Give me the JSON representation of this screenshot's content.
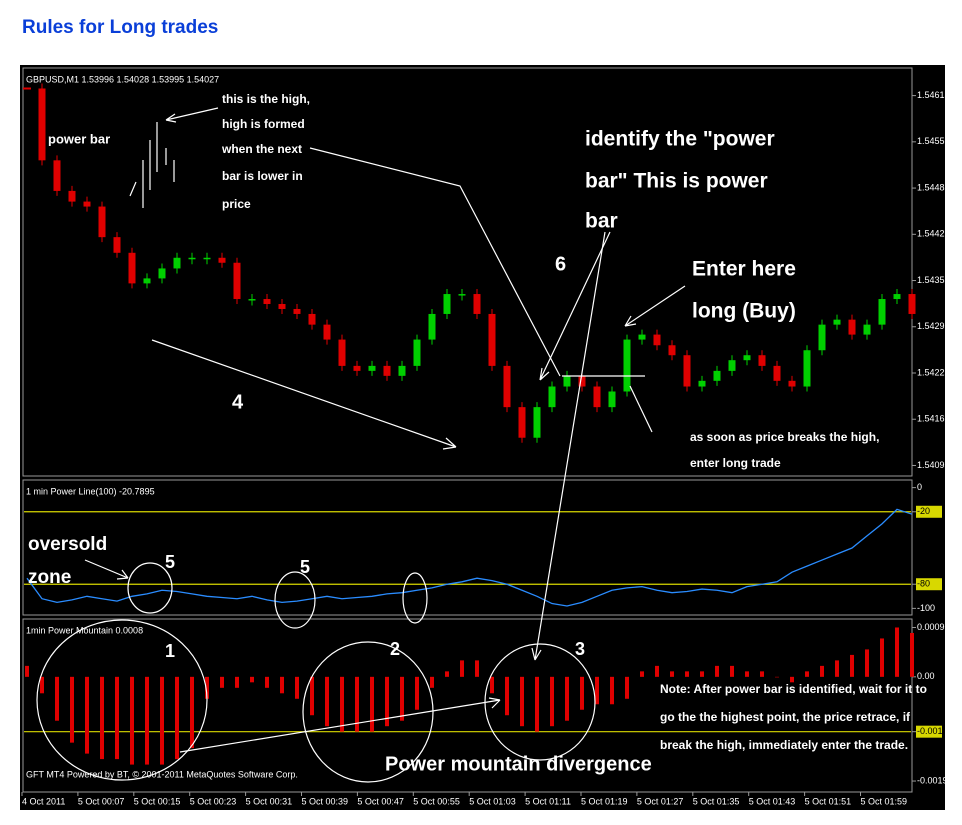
{
  "header": {
    "title": "Rules for Long trades"
  },
  "chart_data": [
    {
      "type": "candlestick",
      "label": "GBPUSD,M1  1.53996 1.54028 1.53995 1.54027",
      "up_color": "#00d000",
      "down_color": "#e00000",
      "ylim": [
        1.54083,
        1.54651
      ],
      "yticks": [
        1.54615,
        1.5455,
        1.54485,
        1.5442,
        1.54355,
        1.5429,
        1.54225,
        1.5416,
        1.54095
      ],
      "values": [
        1.54625,
        1.54524,
        1.54481,
        1.54466,
        1.54459,
        1.54416,
        1.54394,
        1.54351,
        1.54358,
        1.54372,
        1.54387,
        1.54387,
        1.54387,
        1.5438,
        1.54329,
        1.54329,
        1.54322,
        1.54315,
        1.54308,
        1.54293,
        1.54272,
        1.54235,
        1.54228,
        1.54235,
        1.54221,
        1.54235,
        1.54272,
        1.54308,
        1.54336,
        1.54336,
        1.54308,
        1.54235,
        1.54177,
        1.54134,
        1.54177,
        1.54206,
        1.54221,
        1.54206,
        1.54177,
        1.54199,
        1.54272,
        1.54279,
        1.54264,
        1.5425,
        1.54206,
        1.54214,
        1.54228,
        1.54243,
        1.5425,
        1.54235,
        1.54214,
        1.54206,
        1.54257,
        1.54293,
        1.543,
        1.54279,
        1.54293,
        1.54329,
        1.54336,
        1.54308
      ]
    },
    {
      "type": "line",
      "label": "1 min Power Line(100) -20.7895",
      "color": "#2a8cff",
      "level_color": "#d8d800",
      "levels": [
        -20,
        -80
      ],
      "ylim": [
        -103,
        3
      ],
      "yticks": [
        0,
        -20,
        -80,
        -100
      ],
      "values": [
        -75,
        -92,
        -95,
        -93,
        -90,
        -92,
        -94,
        -90,
        -88,
        -85,
        -86,
        -88,
        -90,
        -91,
        -92,
        -90,
        -93,
        -95,
        -94,
        -92,
        -90,
        -92,
        -91,
        -90,
        -88,
        -87,
        -85,
        -83,
        -80,
        -78,
        -75,
        -77,
        -80,
        -85,
        -90,
        -96,
        -98,
        -95,
        -90,
        -85,
        -83,
        -82,
        -85,
        -87,
        -86,
        -84,
        -85,
        -87,
        -82,
        -80,
        -78,
        -70,
        -65,
        -60,
        -55,
        -50,
        -40,
        -30,
        -18,
        -22
      ]
    },
    {
      "type": "bar",
      "label": "1min Power Mountain 0.0008",
      "color": "#e00000",
      "level_color": "#d8d800",
      "levels": [
        -0.001
      ],
      "ylim": [
        -0.0021,
        0.001
      ],
      "yticks": [
        0.0009,
        {
          "value": 0,
          "label": "0.00"
        },
        -0.001,
        -0.0019
      ],
      "values": [
        0.0002,
        -0.0003,
        -0.0008,
        -0.0012,
        -0.0014,
        -0.0015,
        -0.0015,
        -0.0016,
        -0.0016,
        -0.0016,
        -0.0015,
        -0.0013,
        -0.0004,
        -0.0002,
        -0.0002,
        -0.0001,
        -0.0002,
        -0.0003,
        -0.0004,
        -0.0007,
        -0.0009,
        -0.001,
        -0.001,
        -0.001,
        -0.0009,
        -0.0008,
        -0.0006,
        -0.0002,
        0.0001,
        0.0003,
        0.0003,
        -0.0003,
        -0.0007,
        -0.0009,
        -0.001,
        -0.0009,
        -0.0008,
        -0.0006,
        -0.0005,
        -0.0005,
        -0.0004,
        0.0001,
        0.0002,
        0.0001,
        0.0001,
        0.0001,
        0.0002,
        0.0002,
        0.0001,
        0.0001,
        0,
        -0.0001,
        0.0001,
        0.0002,
        0.0003,
        0.0004,
        0.0005,
        0.0007,
        0.0009,
        0.0008
      ]
    }
  ],
  "time_axis": [
    "4 Oct 2011",
    "5 Oct 00:07",
    "5 Oct 00:15",
    "5 Oct 00:23",
    "5 Oct 00:31",
    "5 Oct 00:39",
    "5 Oct 00:47",
    "5 Oct 00:55",
    "5 Oct 01:03",
    "5 Oct 01:11",
    "5 Oct 01:19",
    "5 Oct 01:27",
    "5 Oct 01:35",
    "5 Oct 01:43",
    "5 Oct 01:51",
    "5 Oct 01:59"
  ],
  "annotations": {
    "power_bar": "power bar",
    "high_note": [
      "this is the high,",
      "high is formed",
      "when the next",
      "bar is lower in",
      "price"
    ],
    "identify": [
      "identify the \"power",
      "bar\" This is power",
      "bar"
    ],
    "six": "6",
    "enter": [
      "Enter here",
      "long (Buy)"
    ],
    "four": "4",
    "breaks": [
      "as soon as price breaks the high,",
      "enter long trade"
    ],
    "oversold": [
      "oversold",
      "zone"
    ],
    "five_a": "5",
    "five_b": "5",
    "one": "1",
    "two": "2",
    "three": "3",
    "divergence": "Power mountain divergence",
    "note": [
      "Note: After power bar is identified, wait for it to",
      "go the the highest point, the price retrace, if",
      "break the high, immediately enter the trade."
    ],
    "footer": "GFT MT4 Powered by BT, © 2001-2011 MetaQuotes Software Corp."
  }
}
